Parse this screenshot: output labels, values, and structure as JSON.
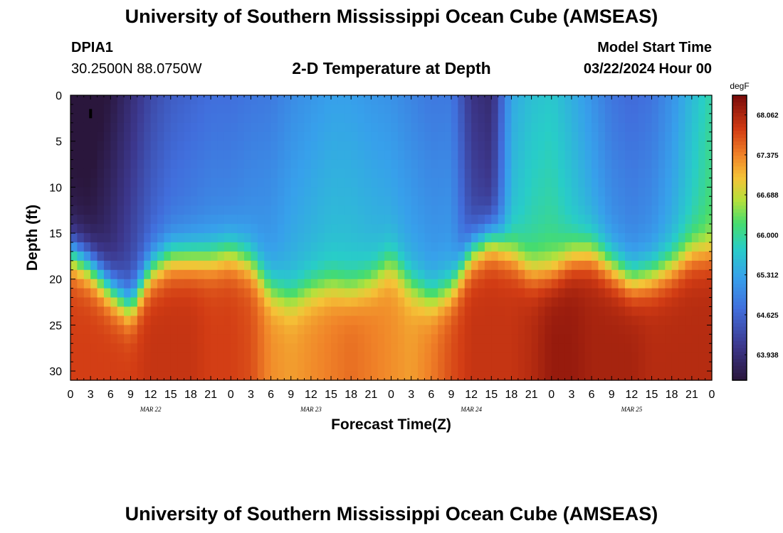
{
  "header": {
    "title": "University of Southern Mississippi Ocean Cube (AMSEAS)",
    "station_id": "DPIA1",
    "coordinates": "30.2500N  88.0750W",
    "plot_title": "2-D Temperature at Depth",
    "model_start_label": "Model Start Time",
    "model_start_value": "03/22/2024 Hour 00"
  },
  "footer": {
    "title": "University of Southern Mississippi Ocean Cube (AMSEAS)"
  },
  "colors": {
    "low": "#2a1a4a",
    "mid_blue": "#3a8fe6",
    "mid": "#3ed28a",
    "high": "#e06a18",
    "max": "#7a0a0a"
  },
  "chart_data": {
    "type": "heatmap",
    "title": "2-D Temperature at Depth",
    "xlabel": "Forecast Time(Z)",
    "ylabel": "Depth (ft)",
    "x_tick_labels": [
      "0",
      "3",
      "6",
      "9",
      "12",
      "15",
      "18",
      "21",
      "0",
      "3",
      "6",
      "9",
      "12",
      "15",
      "18",
      "21",
      "0",
      "3",
      "6",
      "9",
      "12",
      "15",
      "18",
      "21",
      "0",
      "3",
      "6",
      "9",
      "12",
      "15",
      "18",
      "21",
      "0"
    ],
    "date_labels": [
      {
        "label": "MAR 22",
        "hour": 12
      },
      {
        "label": "MAR 23",
        "hour": 36
      },
      {
        "label": "MAR 24",
        "hour": 60
      },
      {
        "label": "MAR 25",
        "hour": 84
      }
    ],
    "xlim_hours": [
      0,
      96
    ],
    "ylim_ft": [
      0,
      31
    ],
    "y_ticks": [
      0,
      5,
      10,
      15,
      20,
      25,
      30
    ],
    "colorbar": {
      "unit": "degF",
      "range": [
        63.5,
        68.4
      ],
      "tick_values": [
        68.062,
        67.375,
        66.688,
        66.0,
        65.312,
        64.625,
        63.938
      ],
      "tick_labels": [
        "68.062",
        "67.375",
        "66.688",
        "66.000",
        "65.312",
        "64.625",
        "63.938"
      ]
    },
    "thermocline_depth_ft": {
      "hours": [
        0,
        3,
        6,
        9,
        12,
        15,
        18,
        21,
        24,
        27,
        30,
        33,
        36,
        39,
        42,
        45,
        48,
        51,
        54,
        57,
        60,
        63,
        66,
        69,
        72,
        75,
        78,
        81,
        84,
        87,
        90,
        93,
        96
      ],
      "values": [
        17,
        18.5,
        21,
        23,
        19,
        17.5,
        17.5,
        17.5,
        17,
        18,
        21,
        22,
        21,
        20.5,
        21,
        20,
        18,
        20.5,
        22,
        21,
        17,
        15.5,
        17,
        19,
        19,
        17.5,
        17,
        18.5,
        20,
        19.5,
        18.5,
        17,
        17
      ]
    },
    "surface_layer_temp_degF": {
      "hours": [
        0,
        3,
        6,
        9,
        12,
        15,
        18,
        21,
        24,
        27,
        30,
        33,
        36,
        39,
        42,
        45,
        48,
        51,
        54,
        57,
        60,
        63,
        66,
        69,
        72,
        75,
        78,
        81,
        84,
        87,
        90,
        93,
        96
      ],
      "values": [
        63.6,
        63.6,
        63.9,
        64.3,
        64.6,
        64.8,
        64.9,
        65.0,
        65.0,
        65.1,
        65.2,
        65.4,
        65.5,
        65.6,
        65.6,
        65.5,
        65.4,
        65.3,
        65.2,
        65.2,
        64.3,
        64.1,
        65.6,
        65.9,
        66.0,
        65.7,
        65.4,
        65.1,
        65.0,
        65.1,
        65.4,
        65.8,
        66.2
      ]
    },
    "bottom_layer_temp_degF": {
      "hours": [
        0,
        3,
        6,
        9,
        12,
        15,
        18,
        21,
        24,
        27,
        30,
        33,
        36,
        39,
        42,
        45,
        48,
        51,
        54,
        57,
        60,
        63,
        66,
        69,
        72,
        75,
        78,
        81,
        84,
        87,
        90,
        93,
        96
      ],
      "values": [
        67.8,
        67.8,
        67.8,
        67.8,
        67.9,
        67.9,
        67.9,
        67.8,
        67.8,
        67.7,
        67.3,
        67.2,
        67.3,
        67.4,
        67.5,
        67.4,
        67.3,
        67.2,
        67.4,
        67.7,
        67.9,
        67.9,
        67.9,
        68.0,
        68.2,
        68.2,
        68.1,
        68.1,
        68.1,
        68.0,
        68.0,
        68.0,
        68.0
      ]
    }
  }
}
